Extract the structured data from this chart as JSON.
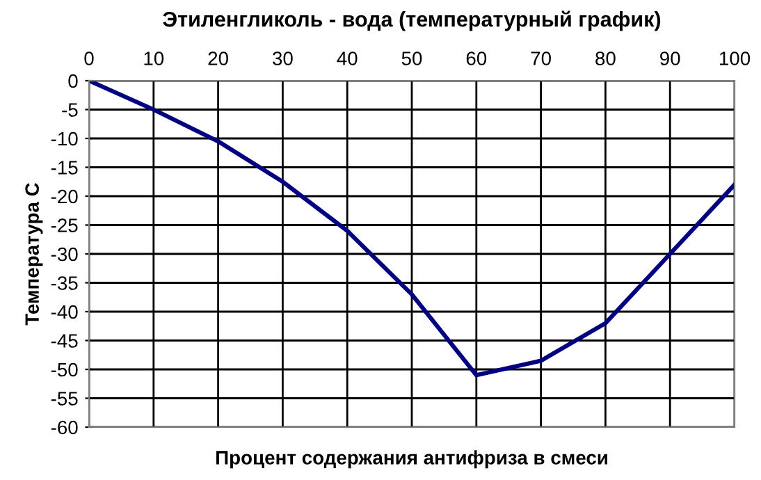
{
  "chart_data": {
    "type": "line",
    "title": "Этиленгликоль - вода (температурный график)",
    "xlabel": "Процент содержания антифриза в смеси",
    "ylabel": "Температура С",
    "x": [
      0,
      10,
      20,
      30,
      40,
      50,
      60,
      70,
      80,
      90,
      100
    ],
    "series": [
      {
        "color": "#000080",
        "values": [
          0,
          -5,
          -10.5,
          -17.5,
          -26,
          -37,
          -51,
          -48.5,
          -42,
          -30,
          -18
        ]
      }
    ],
    "xlim": [
      0,
      100
    ],
    "xticks": [
      0,
      10,
      20,
      30,
      40,
      50,
      60,
      70,
      80,
      90,
      100
    ],
    "ylim": [
      -60,
      0
    ],
    "yticks": [
      0,
      -5,
      -10,
      -15,
      -20,
      -25,
      -30,
      -35,
      -40,
      -45,
      -50,
      -55,
      -60
    ],
    "grid": true,
    "legend": false,
    "marker": "none",
    "line_style": "solid"
  }
}
